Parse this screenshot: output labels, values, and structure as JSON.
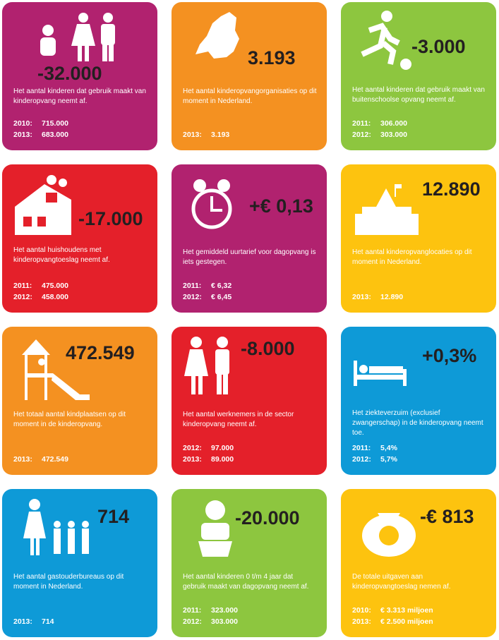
{
  "tiles": [
    {
      "color": "#b1226f",
      "figure": "-32.000",
      "description": "Het aantal kinderen dat gebruik maakt van kinderopvang neemt af.",
      "rows": [
        [
          "2010:",
          "715.000"
        ],
        [
          "2013:",
          "683.000"
        ]
      ]
    },
    {
      "color": "#f49121",
      "figure": "3.193",
      "description": "Het aantal kinderopvangorganisaties op dit moment in Nederland.",
      "rows": [
        [
          "2013:",
          "3.193"
        ]
      ]
    },
    {
      "color": "#8dc63f",
      "figure": "-3.000",
      "description": "Het aantal kinderen dat gebruik maakt van buitenschoolse opvang neemt af.",
      "rows": [
        [
          "2011:",
          "306.000"
        ],
        [
          "2012:",
          "303.000"
        ]
      ]
    },
    {
      "color": "#e4202a",
      "figure": "-17.000",
      "description": "Het aantal huishoudens met kinderopvangtoeslag neemt af.",
      "rows": [
        [
          "2011:",
          "475.000"
        ],
        [
          "2012:",
          "458.000"
        ]
      ]
    },
    {
      "color": "#b1226f",
      "figure": "+€ 0,13",
      "description": "Het gemiddeld uurtarief voor dagopvang is iets gestegen.",
      "rows": [
        [
          "2011:",
          "€ 6,32"
        ],
        [
          "2012:",
          "€ 6,45"
        ]
      ]
    },
    {
      "color": "#fdc30f",
      "figure": "12.890",
      "description": "Het aantal kinderopvanglocaties op dit moment in Nederland.",
      "rows": [
        [
          "2013:",
          "12.890"
        ]
      ]
    },
    {
      "color": "#f49121",
      "figure": "472.549",
      "description": "Het totaal aantal kindplaatsen op dit moment in de kinderopvang.",
      "rows": [
        [
          "2013:",
          "472.549"
        ]
      ]
    },
    {
      "color": "#e4202a",
      "figure": "-8.000",
      "description": "Het aantal werknemers in de sector kinderopvang neemt af.",
      "rows": [
        [
          "2012:",
          "97.000"
        ],
        [
          "2013:",
          "89.000"
        ]
      ]
    },
    {
      "color": "#0e9ad7",
      "figure": "+0,3%",
      "description": "Het ziekteverzuim (exclusief zwangerschap) in de kinderopvang neemt toe.",
      "rows": [
        [
          "2011:",
          "5,4%"
        ],
        [
          "2012:",
          "5,7%"
        ]
      ]
    },
    {
      "color": "#0e9ad7",
      "figure": "714",
      "description": "Het aantal gastouderbureaus op dit moment in Nederland.",
      "rows": [
        [
          "2013:",
          "714"
        ]
      ]
    },
    {
      "color": "#8dc63f",
      "figure": "-20.000",
      "description": "Het aantal kinderen 0 t/m 4 jaar dat gebruik maakt van dagopvang neemt af.",
      "rows": [
        [
          "2011:",
          "323.000"
        ],
        [
          "2012:",
          "303.000"
        ]
      ]
    },
    {
      "color": "#fdc30f",
      "figure": "-€ 813",
      "description": "De totale uitgaven aan kinderopvangtoeslag nemen af.",
      "rows": [
        [
          "2010:",
          "€ 3.313 miljoen"
        ],
        [
          "2013:",
          "€ 2.500 miljoen"
        ]
      ]
    }
  ]
}
